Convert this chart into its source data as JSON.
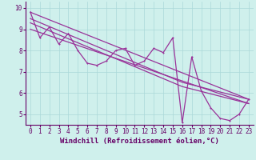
{
  "background_color": "#cff0ec",
  "grid_color": "#aad8d8",
  "line_color": "#993399",
  "axis_color": "#660066",
  "xlabel": "Windchill (Refroidissement éolien,°C)",
  "xlabel_fontsize": 6.5,
  "tick_fontsize": 5.5,
  "xlim": [
    -0.5,
    23.5
  ],
  "ylim": [
    4.5,
    10.3
  ],
  "yticks": [
    5,
    6,
    7,
    8,
    9,
    10
  ],
  "xticks": [
    0,
    1,
    2,
    3,
    4,
    5,
    6,
    7,
    8,
    9,
    10,
    11,
    12,
    13,
    14,
    15,
    16,
    17,
    18,
    19,
    20,
    21,
    22,
    23
  ],
  "series_x": [
    0,
    1,
    2,
    3,
    4,
    5,
    6,
    7,
    8,
    9,
    10,
    11,
    12,
    13,
    14,
    15,
    16,
    17,
    18,
    19,
    20,
    21,
    22,
    23
  ],
  "series_y": [
    9.8,
    8.6,
    9.1,
    8.3,
    8.8,
    8.0,
    7.4,
    7.3,
    7.5,
    8.0,
    8.1,
    7.3,
    7.5,
    8.1,
    7.9,
    8.6,
    4.6,
    7.7,
    6.1,
    5.3,
    4.8,
    4.7,
    5.0,
    5.7
  ],
  "trend1_x": [
    0,
    23
  ],
  "trend1_y": [
    9.8,
    5.7
  ],
  "trend2_x": [
    0,
    16,
    23
  ],
  "trend2_y": [
    9.5,
    6.5,
    5.7
  ],
  "trend3_x": [
    0,
    16,
    23
  ],
  "trend3_y": [
    9.3,
    6.3,
    5.5
  ],
  "trend4_x": [
    0,
    23
  ],
  "trend4_y": [
    9.0,
    5.5
  ]
}
